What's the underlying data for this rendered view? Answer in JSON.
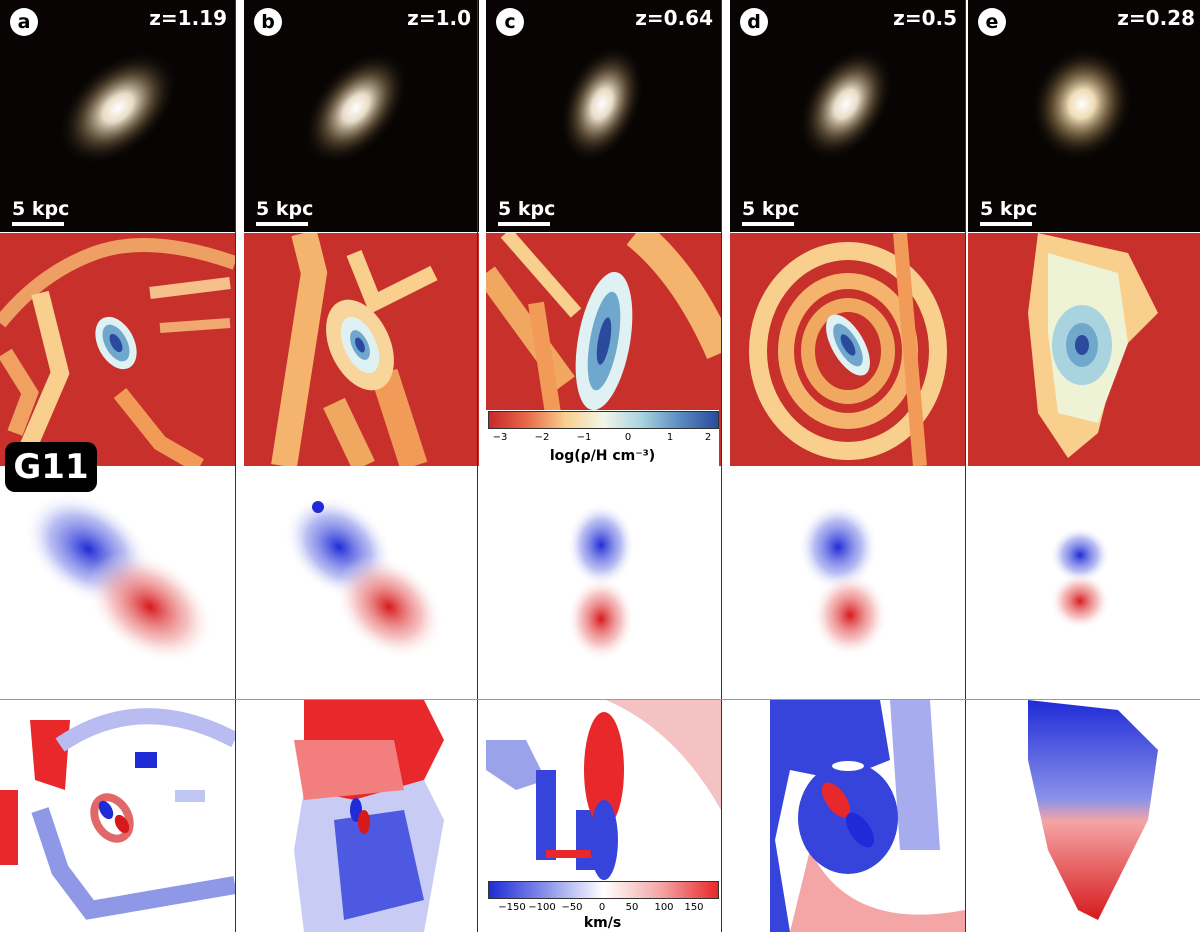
{
  "panels": [
    {
      "letter": "a",
      "redshift": "z=1.19"
    },
    {
      "letter": "b",
      "redshift": "z=1.0"
    },
    {
      "letter": "c",
      "redshift": "z=0.64"
    },
    {
      "letter": "d",
      "redshift": "z=0.5"
    },
    {
      "letter": "e",
      "redshift": "z=0.28"
    }
  ],
  "scale_label": "5 kpc",
  "galaxy_label": "G11",
  "density_colorbar": {
    "ticks": [
      "−3",
      "−2",
      "−1",
      "0",
      "1",
      "2"
    ],
    "label": "log(ρ/H cm⁻³)"
  },
  "velocity_colorbar": {
    "ticks": [
      "−150",
      "−100",
      "−50",
      "0",
      "50",
      "100",
      "150"
    ],
    "label": "km/s"
  },
  "colors": {
    "red": "#d7191c",
    "blue": "#1f2bd6",
    "density_low": "#c62828",
    "density_high": "#2b4a9e"
  }
}
